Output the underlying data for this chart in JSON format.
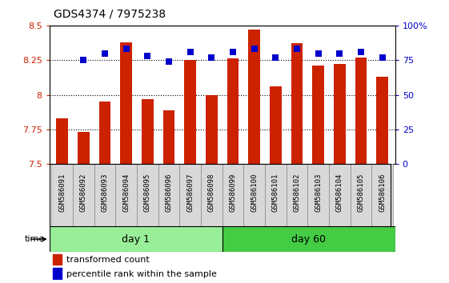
{
  "title": "GDS4374 / 7975238",
  "samples": [
    "GSM586091",
    "GSM586092",
    "GSM586093",
    "GSM586094",
    "GSM586095",
    "GSM586096",
    "GSM586097",
    "GSM586098",
    "GSM586099",
    "GSM586100",
    "GSM586101",
    "GSM586102",
    "GSM586103",
    "GSM586104",
    "GSM586105",
    "GSM586106"
  ],
  "red_values": [
    7.83,
    7.73,
    7.95,
    8.38,
    7.97,
    7.89,
    8.25,
    8.0,
    8.26,
    8.47,
    8.06,
    8.37,
    8.21,
    8.22,
    8.27,
    8.13
  ],
  "blue_values": [
    null,
    75,
    80,
    83,
    78,
    74,
    81,
    77,
    81,
    83,
    77,
    83,
    80,
    80,
    81,
    77
  ],
  "day1_count": 8,
  "day60_count": 8,
  "ylim_left": [
    7.5,
    8.5
  ],
  "ylim_right": [
    0,
    100
  ],
  "yticks_left": [
    7.5,
    7.75,
    8.0,
    8.25,
    8.5
  ],
  "yticks_right": [
    0,
    25,
    50,
    75,
    100
  ],
  "ytick_labels_left": [
    "7.5",
    "7.75",
    "8",
    "8.25",
    "8.5"
  ],
  "ytick_labels_right": [
    "0",
    "25",
    "50",
    "75",
    "100%"
  ],
  "grid_values": [
    7.75,
    8.0,
    8.25
  ],
  "bar_color": "#CC2200",
  "dot_color": "#0000CC",
  "day1_color": "#99EE99",
  "day60_color": "#44CC44",
  "label_bg_color": "#D8D8D8",
  "day1_label": "day 1",
  "day60_label": "day 60",
  "time_label": "time",
  "legend1": "transformed count",
  "legend2": "percentile rank within the sample",
  "bar_width": 0.55,
  "dot_size": 40,
  "base_value": 7.5,
  "title_fontsize": 10,
  "tick_fontsize": 8,
  "label_fontsize": 6.5,
  "legend_fontsize": 8
}
